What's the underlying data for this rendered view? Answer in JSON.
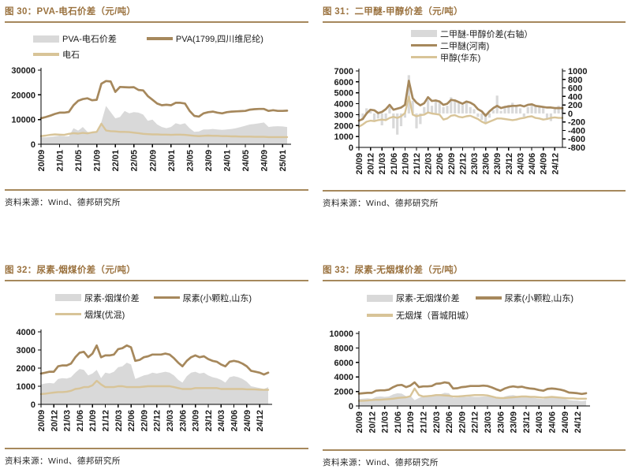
{
  "page": {
    "background": "#FFFFFF"
  },
  "colors": {
    "title_text": "#9B7340",
    "rule": "#A6885C",
    "brown_line": "#A6885C",
    "tan_line": "#D8C498",
    "gray_fill": "#D9D9D9",
    "axis_text": "#1A1A1A",
    "source_text": "#262626"
  },
  "chart_data": [
    {
      "id": "fig30",
      "type": "combo",
      "title": "图 30：PVA-电石价差（元/吨）",
      "source": "资料来源：Wind、德邦研究所",
      "x_start": "20/09",
      "x_frequency": "monthly",
      "ylim": [
        0,
        30000
      ],
      "yticks": [
        0,
        10000,
        20000,
        30000
      ],
      "xtick_indices": [
        0,
        4,
        8,
        12,
        16,
        20,
        24,
        28,
        32,
        36,
        40,
        44,
        48,
        52
      ],
      "xtick_labels": [
        "20/09",
        "21/01",
        "21/05",
        "21/09",
        "22/01",
        "22/05",
        "22/09",
        "23/01",
        "23/05",
        "23/09",
        "24/01",
        "24/05",
        "24/09",
        "25/01"
      ],
      "legend_rows": [
        [
          0,
          1
        ],
        [
          2
        ]
      ],
      "series": [
        {
          "name": "PVA-电石价差",
          "type": "area",
          "color": "#D9D9D9",
          "axis": "left",
          "values": [
            2800,
            2800,
            3000,
            3200,
            3500,
            3300,
            3200,
            6500,
            5500,
            7000,
            5000,
            4500,
            5000,
            9000,
            15500,
            13000,
            10500,
            11000,
            13500,
            12500,
            13000,
            12800,
            12000,
            9500,
            10000,
            8000,
            7000,
            6500,
            7000,
            8500,
            8000,
            8500,
            6500,
            5000,
            5200,
            6000,
            6000,
            6200,
            6000,
            5800,
            6000,
            6200,
            6500,
            7000,
            7500,
            8000,
            8200,
            8500,
            8800,
            7000,
            7200,
            7300,
            7200,
            7000
          ]
        },
        {
          "name": "PVA(1799,四川维尼纶)",
          "type": "line",
          "color": "#A6885C",
          "axis": "left",
          "values": [
            10500,
            11000,
            11600,
            12300,
            12800,
            12800,
            13100,
            15800,
            17600,
            18300,
            18600,
            17800,
            18000,
            24500,
            25600,
            25400,
            21200,
            23200,
            23100,
            23000,
            23100,
            22000,
            21800,
            19500,
            18000,
            16500,
            15800,
            16000,
            15800,
            16800,
            16800,
            16500,
            13500,
            11500,
            11200,
            12500,
            13000,
            13200,
            12800,
            12500,
            13000,
            13200,
            13300,
            13400,
            13500,
            14000,
            14200,
            14300,
            14300,
            13500,
            13800,
            13500,
            13500,
            13600
          ]
        },
        {
          "name": "电石",
          "type": "line",
          "color": "#D8C498",
          "axis": "left",
          "values": [
            3300,
            3500,
            3800,
            4000,
            3900,
            3800,
            4200,
            4500,
            4300,
            4600,
            4400,
            4800,
            5000,
            8300,
            5600,
            5300,
            5200,
            5000,
            5000,
            4900,
            4700,
            4500,
            4200,
            4100,
            4000,
            4000,
            3900,
            3900,
            3800,
            3900,
            3900,
            3800,
            3600,
            3400,
            3300,
            3400,
            3500,
            3400,
            3400,
            3300,
            3300,
            3200,
            3200,
            3100,
            3100,
            3100,
            3000,
            3000,
            3000,
            2900,
            2900,
            2900,
            2900,
            2900
          ]
        }
      ]
    },
    {
      "id": "fig31",
      "type": "combo",
      "title": "图 31：二甲醚-甲醇价差（元/吨）",
      "source": "资料来源：Wind、德邦研究所",
      "x_start": "20/09",
      "x_frequency": "monthly",
      "ylim": [
        0,
        7000
      ],
      "yticks": [
        0,
        1000,
        2000,
        3000,
        4000,
        5000,
        6000,
        7000
      ],
      "ylim_right": [
        -800,
        1000
      ],
      "yticks_right": [
        1000,
        800,
        600,
        400,
        200,
        0,
        -200,
        -400,
        -600,
        -800
      ],
      "xtick_indices": [
        0,
        3,
        6,
        9,
        12,
        15,
        18,
        21,
        24,
        27,
        30,
        33,
        36,
        39,
        42,
        45,
        48,
        51
      ],
      "xtick_labels": [
        "20/09",
        "20/12",
        "21/03",
        "21/06",
        "21/09",
        "21/12",
        "22/03",
        "22/06",
        "22/09",
        "22/12",
        "23/03",
        "23/06",
        "23/09",
        "23/12",
        "24/03",
        "24/06",
        "24/09",
        "24/12"
      ],
      "legend_rows": [
        [
          0
        ],
        [
          1
        ],
        [
          2
        ]
      ],
      "series": [
        {
          "name": "二甲醚-甲醇价差(右轴）",
          "type": "bars",
          "color": "#D9D9D9",
          "axis": "right",
          "values": [
            -80,
            -150,
            120,
            60,
            -180,
            -120,
            -280,
            -150,
            150,
            -350,
            -500,
            -300,
            -100,
            900,
            300,
            -350,
            -250,
            150,
            320,
            180,
            280,
            250,
            150,
            180,
            380,
            300,
            250,
            200,
            250,
            150,
            100,
            -80,
            -150,
            -250,
            -100,
            80,
            420,
            60,
            150,
            200,
            250,
            180,
            120,
            -80,
            150,
            200,
            180,
            150,
            150,
            -120,
            -180,
            100,
            180,
            150
          ]
        },
        {
          "name": "二甲醚(河南)",
          "type": "line",
          "color": "#A6885C",
          "axis": "left",
          "values": [
            2450,
            2600,
            3100,
            3450,
            3400,
            3150,
            3250,
            3500,
            3900,
            3450,
            3550,
            3650,
            3900,
            6100,
            4500,
            4100,
            3850,
            4050,
            4600,
            4250,
            4300,
            4200,
            3900,
            4000,
            4350,
            4300,
            4150,
            4000,
            4200,
            4100,
            3900,
            3500,
            3300,
            2900,
            3300,
            3600,
            3800,
            3600,
            3700,
            3750,
            3800,
            3800,
            3850,
            3750,
            3900,
            3950,
            3800,
            3750,
            3700,
            3650,
            3650,
            3600,
            3600,
            3600
          ]
        },
        {
          "name": "甲醇(华东)",
          "type": "line",
          "color": "#D8C498",
          "axis": "left",
          "values": [
            1900,
            2100,
            2350,
            2450,
            2400,
            2500,
            2550,
            2500,
            2700,
            2800,
            2700,
            2850,
            3150,
            4650,
            3000,
            2850,
            2950,
            3000,
            3200,
            3100,
            3050,
            3000,
            2550,
            2650,
            2900,
            2950,
            2800,
            2750,
            2850,
            2900,
            2750,
            2600,
            2350,
            2200,
            2350,
            2500,
            2650,
            2650,
            2600,
            2550,
            2500,
            2550,
            2650,
            2700,
            2800,
            2850,
            2700,
            2650,
            2550,
            2600,
            2700,
            2750,
            2700,
            2700
          ]
        }
      ]
    },
    {
      "id": "fig32",
      "type": "combo",
      "title": "图 32：尿素-烟煤价差（元/吨）",
      "source": "资料来源：Wind、德邦研究所",
      "x_start": "20/09",
      "x_frequency": "monthly",
      "ylim": [
        0,
        4000
      ],
      "yticks": [
        0,
        1000,
        2000,
        3000,
        4000
      ],
      "xtick_indices": [
        0,
        3,
        6,
        9,
        12,
        15,
        18,
        21,
        24,
        27,
        30,
        33,
        36,
        39,
        42,
        45,
        48,
        51
      ],
      "xtick_labels": [
        "20/09",
        "20/12",
        "21/03",
        "21/06",
        "21/09",
        "21/12",
        "22/03",
        "22/06",
        "22/09",
        "22/12",
        "23/03",
        "23/06",
        "23/09",
        "23/12",
        "24/03",
        "24/06",
        "24/09",
        "24/12"
      ],
      "legend_rows": [
        [
          0,
          1
        ],
        [
          2
        ]
      ],
      "series": [
        {
          "name": "尿素-烟煤价差",
          "type": "area",
          "color": "#D9D9D9",
          "axis": "left",
          "values": [
            1100,
            1150,
            1180,
            1150,
            1400,
            1450,
            1420,
            1500,
            1750,
            1950,
            1900,
            1600,
            1700,
            1900,
            1450,
            1750,
            1700,
            1800,
            2050,
            2100,
            2300,
            2200,
            1400,
            1500,
            1600,
            1650,
            1750,
            1700,
            1750,
            1800,
            1750,
            1600,
            1350,
            1200,
            1550,
            1750,
            1800,
            1700,
            1750,
            1600,
            1500,
            1450,
            1350,
            1200,
            1500,
            1550,
            1500,
            1400,
            1250,
            1000,
            950,
            900,
            850,
            950
          ]
        },
        {
          "name": "尿素(小颗粒,山东)",
          "type": "line",
          "color": "#A6885C",
          "axis": "left",
          "values": [
            1700,
            1750,
            1800,
            1800,
            2100,
            2150,
            2150,
            2250,
            2600,
            2850,
            2900,
            2600,
            2800,
            3250,
            2600,
            2700,
            2700,
            2750,
            3050,
            3100,
            3250,
            3150,
            2400,
            2450,
            2600,
            2650,
            2750,
            2750,
            2750,
            2800,
            2750,
            2550,
            2300,
            2100,
            2400,
            2600,
            2700,
            2600,
            2650,
            2500,
            2400,
            2350,
            2200,
            2100,
            2350,
            2400,
            2350,
            2250,
            2100,
            1850,
            1800,
            1750,
            1650,
            1750
          ]
        },
        {
          "name": "烟煤(优混)",
          "type": "line",
          "color": "#D8C498",
          "axis": "left",
          "values": [
            570,
            590,
            620,
            650,
            680,
            680,
            700,
            750,
            850,
            880,
            950,
            950,
            1050,
            1300,
            1100,
            950,
            950,
            950,
            1000,
            1000,
            950,
            950,
            950,
            950,
            980,
            1000,
            1000,
            1000,
            1000,
            1000,
            1000,
            950,
            900,
            850,
            850,
            850,
            900,
            900,
            900,
            900,
            900,
            900,
            850,
            850,
            850,
            850,
            850,
            850,
            830,
            830,
            820,
            810,
            800,
            800
          ]
        }
      ]
    },
    {
      "id": "fig33",
      "type": "combo",
      "title": "图 33：尿素-无烟煤价差（元/吨）",
      "source": "资料来源：Wind、德邦研究所",
      "x_start": "20/09",
      "x_frequency": "monthly",
      "ylim": [
        0,
        10000
      ],
      "yticks": [
        0,
        2000,
        4000,
        6000,
        8000,
        10000
      ],
      "xtick_indices": [
        0,
        3,
        6,
        9,
        12,
        15,
        18,
        21,
        24,
        27,
        30,
        33,
        36,
        39,
        42,
        45,
        48,
        51
      ],
      "xtick_labels": [
        "20/09",
        "20/12",
        "21/03",
        "21/06",
        "21/09",
        "21/12",
        "22/03",
        "22/06",
        "22/09",
        "22/12",
        "23/03",
        "23/06",
        "23/09",
        "23/12",
        "24/03",
        "24/06",
        "24/09",
        "24/12"
      ],
      "legend_rows": [
        [
          0,
          1
        ],
        [
          2
        ]
      ],
      "series": [
        {
          "name": "尿素-无烟煤价差",
          "type": "area",
          "color": "#D9D9D9",
          "axis": "left",
          "values": [
            950,
            1000,
            1050,
            980,
            1250,
            1300,
            1250,
            1300,
            1600,
            1750,
            1700,
            1350,
            1400,
            800,
            1100,
            1400,
            1350,
            1350,
            1550,
            1600,
            1800,
            1750,
            1100,
            1150,
            1250,
            1250,
            1300,
            1250,
            1250,
            1300,
            1300,
            1250,
            1150,
            1000,
            1300,
            1450,
            1500,
            1350,
            1350,
            1200,
            1150,
            1100,
            1000,
            950,
            1150,
            1150,
            1150,
            1100,
            1000,
            800,
            750,
            750,
            650,
            750
          ]
        },
        {
          "name": "尿素(小颗粒,山东)",
          "type": "line",
          "color": "#A6885C",
          "axis": "left",
          "values": [
            1700,
            1750,
            1800,
            1800,
            2100,
            2150,
            2150,
            2250,
            2600,
            2850,
            2900,
            2600,
            2800,
            3250,
            2600,
            2700,
            2700,
            2750,
            3050,
            3100,
            3250,
            3150,
            2400,
            2450,
            2600,
            2650,
            2750,
            2750,
            2750,
            2800,
            2750,
            2550,
            2300,
            2100,
            2400,
            2600,
            2700,
            2600,
            2650,
            2500,
            2400,
            2350,
            2200,
            2100,
            2350,
            2400,
            2350,
            2250,
            2100,
            1850,
            1800,
            1750,
            1650,
            1750
          ]
        },
        {
          "name": "无烟煤（晋城阳城）",
          "type": "line",
          "color": "#D8C498",
          "axis": "left",
          "values": [
            700,
            720,
            750,
            800,
            850,
            850,
            900,
            950,
            1000,
            1100,
            1150,
            1200,
            1350,
            2400,
            1500,
            1300,
            1350,
            1400,
            1500,
            1500,
            1450,
            1400,
            1300,
            1300,
            1350,
            1400,
            1450,
            1500,
            1500,
            1500,
            1450,
            1300,
            1150,
            1100,
            1100,
            1150,
            1200,
            1250,
            1300,
            1300,
            1250,
            1250,
            1200,
            1150,
            1200,
            1250,
            1200,
            1150,
            1100,
            1050,
            1050,
            1000,
            1000,
            1000
          ]
        }
      ]
    }
  ]
}
